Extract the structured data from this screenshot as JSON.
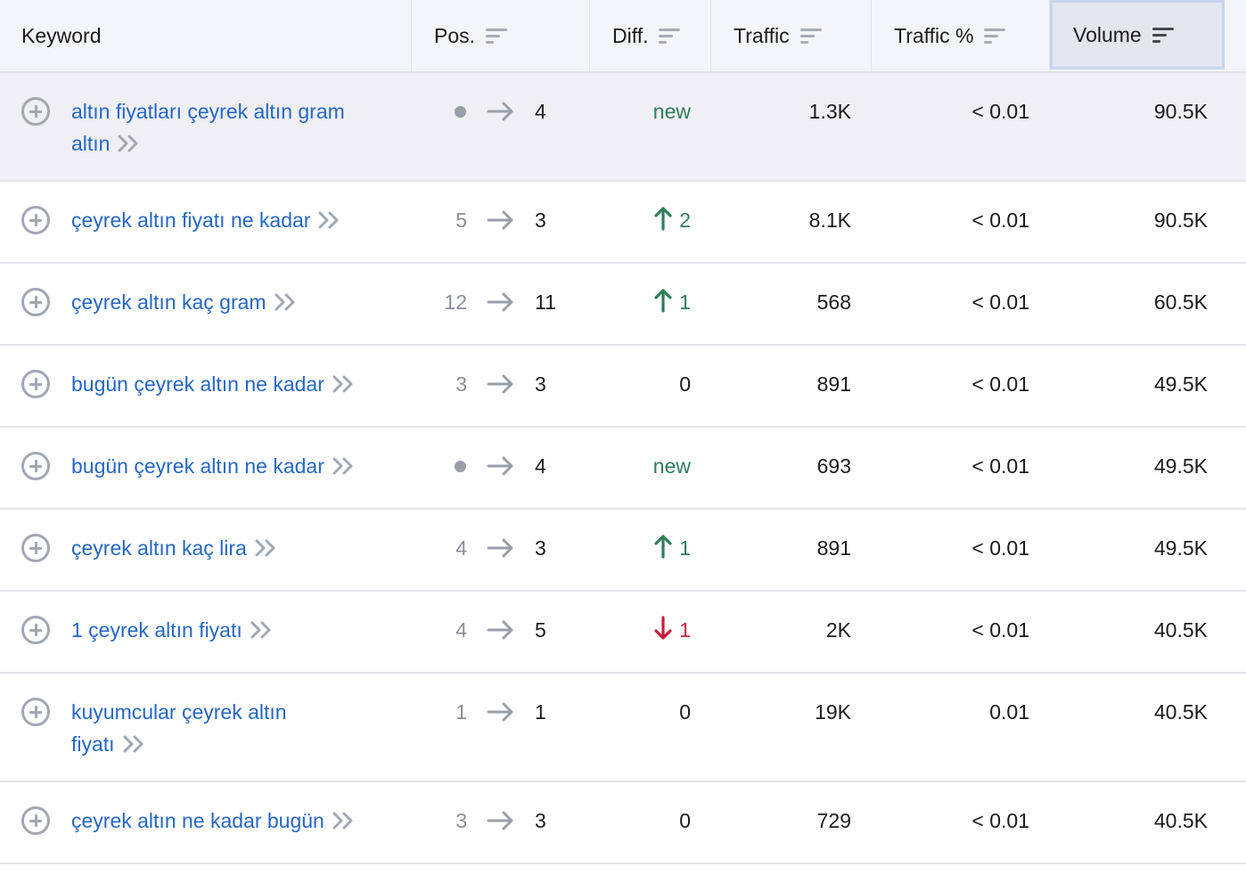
{
  "columns": {
    "keyword": "Keyword",
    "pos": "Pos.",
    "diff": "Diff.",
    "traffic": "Traffic",
    "traffic_pct": "Traffic %",
    "volume": "Volume"
  },
  "sorted_column": "Volume",
  "colors": {
    "link": "#2567c4",
    "positive": "#2e7d5b",
    "negative": "#c8203a",
    "header_bg": "#f4f5f9"
  },
  "rows": [
    {
      "keyword_line1": "altın fiyatları çeyrek altın gram",
      "keyword_line2": "altın",
      "pos_prev": "",
      "pos_prev_dot": true,
      "pos_cur": "4",
      "diff_type": "new",
      "diff": "new",
      "traffic": "1.3K",
      "traffic_pct": "< 0.01",
      "volume": "90.5K",
      "highlighted": true
    },
    {
      "keyword_line1": "çeyrek altın fiyatı ne kadar",
      "keyword_line2": "",
      "pos_prev": "5",
      "pos_prev_dot": false,
      "pos_cur": "3",
      "diff_type": "up",
      "diff": "2",
      "traffic": "8.1K",
      "traffic_pct": "< 0.01",
      "volume": "90.5K",
      "highlighted": false
    },
    {
      "keyword_line1": "çeyrek altın kaç gram",
      "keyword_line2": "",
      "pos_prev": "12",
      "pos_prev_dot": false,
      "pos_cur": "11",
      "diff_type": "up",
      "diff": "1",
      "traffic": "568",
      "traffic_pct": "< 0.01",
      "volume": "60.5K",
      "highlighted": false
    },
    {
      "keyword_line1": "bugün çeyrek altın ne kadar",
      "keyword_line2": "",
      "pos_prev": "3",
      "pos_prev_dot": false,
      "pos_cur": "3",
      "diff_type": "zero",
      "diff": "0",
      "traffic": "891",
      "traffic_pct": "< 0.01",
      "volume": "49.5K",
      "highlighted": false
    },
    {
      "keyword_line1": "bugün çeyrek altın ne kadar",
      "keyword_line2": "",
      "pos_prev": "",
      "pos_prev_dot": true,
      "pos_cur": "4",
      "diff_type": "new",
      "diff": "new",
      "traffic": "693",
      "traffic_pct": "< 0.01",
      "volume": "49.5K",
      "highlighted": false
    },
    {
      "keyword_line1": "çeyrek altın kaç lira",
      "keyword_line2": "",
      "pos_prev": "4",
      "pos_prev_dot": false,
      "pos_cur": "3",
      "diff_type": "up",
      "diff": "1",
      "traffic": "891",
      "traffic_pct": "< 0.01",
      "volume": "49.5K",
      "highlighted": false
    },
    {
      "keyword_line1": "1 çeyrek altın fiyatı",
      "keyword_line2": "",
      "pos_prev": "4",
      "pos_prev_dot": false,
      "pos_cur": "5",
      "diff_type": "down",
      "diff": "1",
      "traffic": "2K",
      "traffic_pct": "< 0.01",
      "volume": "40.5K",
      "highlighted": false
    },
    {
      "keyword_line1": "kuyumcular çeyrek altın",
      "keyword_line2": "fiyatı",
      "pos_prev": "1",
      "pos_prev_dot": false,
      "pos_cur": "1",
      "diff_type": "zero",
      "diff": "0",
      "traffic": "19K",
      "traffic_pct": "0.01",
      "volume": "40.5K",
      "highlighted": false
    },
    {
      "keyword_line1": "çeyrek altın ne kadar bugün",
      "keyword_line2": "",
      "pos_prev": "3",
      "pos_prev_dot": false,
      "pos_cur": "3",
      "diff_type": "zero",
      "diff": "0",
      "traffic": "729",
      "traffic_pct": "< 0.01",
      "volume": "40.5K",
      "highlighted": false
    }
  ]
}
